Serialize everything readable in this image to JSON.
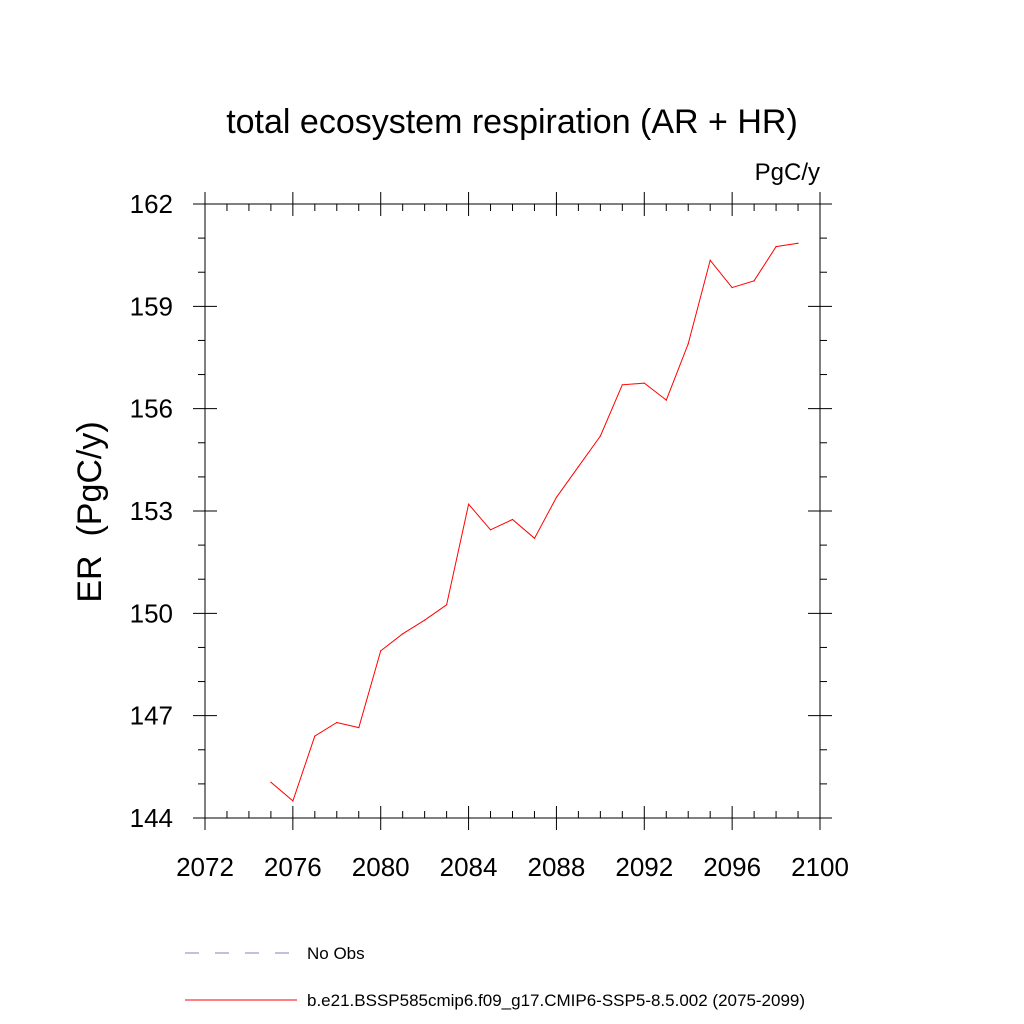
{
  "chart_data": {
    "type": "line",
    "title": "total ecosystem respiration (AR + HR)",
    "units": "PgC/y",
    "ylabel": "ER  (PgC/y)",
    "xlabel": "",
    "xlim": [
      2072,
      2100
    ],
    "ylim": [
      144,
      162
    ],
    "xticks": [
      2072,
      2076,
      2080,
      2084,
      2088,
      2092,
      2096,
      2100
    ],
    "yticks": [
      144,
      147,
      150,
      153,
      156,
      159,
      162
    ],
    "x_minor_step": 1,
    "y_minor_step": 1,
    "grid": false,
    "series": [
      {
        "name": "b.e21.BSSP585cmip6.f09_g17.CMIP6-SSP5-8.5.002 (2075-2099)",
        "color": "#ff0000",
        "style": "solid",
        "x": [
          2075,
          2076,
          2077,
          2078,
          2079,
          2080,
          2081,
          2082,
          2083,
          2084,
          2085,
          2086,
          2087,
          2088,
          2089,
          2090,
          2091,
          2092,
          2093,
          2094,
          2095,
          2096,
          2097,
          2098,
          2099
        ],
        "values": [
          145.05,
          144.5,
          146.4,
          146.8,
          146.65,
          148.9,
          149.4,
          149.8,
          150.25,
          153.2,
          152.45,
          152.75,
          152.2,
          153.4,
          154.3,
          155.2,
          156.7,
          156.75,
          156.25,
          157.9,
          160.35,
          159.55,
          159.75,
          160.75,
          160.85
        ]
      }
    ],
    "legend": {
      "placement": "bottom",
      "entries": [
        {
          "label": "No Obs",
          "color": "#8080c0",
          "style": "dashed"
        },
        {
          "label": "b.e21.BSSP585cmip6.f09_g17.CMIP6-SSP5-8.5.002 (2075-2099)",
          "color": "#ff0000",
          "style": "solid"
        }
      ]
    }
  }
}
